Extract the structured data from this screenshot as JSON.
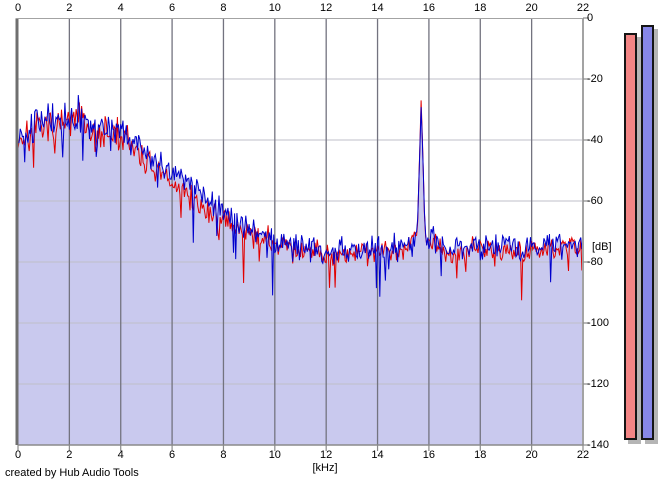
{
  "footer": {
    "credit": "created by Hub Audio Tools"
  },
  "chart_data": {
    "type": "line",
    "title": "",
    "xlabel": "[kHz]",
    "ylabel": "[dB]",
    "xlim": [
      0,
      22
    ],
    "ylim": [
      -140,
      0
    ],
    "x_ticks": [
      "0",
      "2",
      "4",
      "6",
      "8",
      "10",
      "12",
      "14",
      "16",
      "18",
      "20",
      "22"
    ],
    "y_ticks": [
      "0",
      "-20",
      "-40",
      "-60",
      "-80",
      "-100",
      "-120",
      "-140"
    ],
    "grid": true,
    "legend": "none",
    "fill_color": "#c9c9ee",
    "points_per_khz": 23,
    "noise_floor_db": -76,
    "noise_jitter_db": {
      "below_4_6khz": 9,
      "above_4_6khz": 6
    },
    "spike": {
      "freq_khz": 15.7,
      "red_peak_db": -26,
      "blue_peak_db": -27.5
    },
    "envelope_x_khz": [
      0,
      0.8,
      1.6,
      2.4,
      3.0,
      3.8,
      4.4,
      5.0,
      5.6,
      6.2,
      7.0,
      8.0,
      9.0,
      10,
      11,
      12,
      13,
      14,
      15,
      15.55,
      15.7,
      15.85,
      16.5,
      18,
      20,
      22
    ],
    "series": [
      {
        "name": "spectrum-red",
        "color": "#e10000",
        "seed": 7,
        "envelope_db": [
          -40,
          -36,
          -36,
          -33,
          -38,
          -38,
          -41,
          -47,
          -52,
          -55,
          -61,
          -66,
          -71,
          -74,
          -76,
          -77,
          -77,
          -76,
          -76,
          -71,
          -26,
          -71,
          -76,
          -76,
          -76,
          -75
        ]
      },
      {
        "name": "spectrum-blue",
        "color": "#0000cd",
        "seed": 13,
        "envelope_db": [
          -38,
          -34,
          -34,
          -32,
          -36,
          -36,
          -39,
          -44,
          -48,
          -51,
          -57,
          -63,
          -69,
          -73,
          -75,
          -76,
          -76,
          -75,
          -75,
          -70,
          -27.5,
          -70,
          -75,
          -75,
          -75,
          -74
        ]
      }
    ],
    "grid_colors": {
      "vertical": "#73737f",
      "horizontal": "#bfbfc8"
    },
    "border_colors": {
      "left": "#6f6f6f",
      "other": "#a3a3a3",
      "tick": "#8a8a8a"
    }
  },
  "meters": {
    "shadow_color": "#b5b5b5",
    "items": [
      {
        "name": "meter-red",
        "color": "#f38585",
        "value_db": -4.9
      },
      {
        "name": "meter-blue",
        "color": "#8787e8",
        "value_db": -2.3
      }
    ]
  }
}
